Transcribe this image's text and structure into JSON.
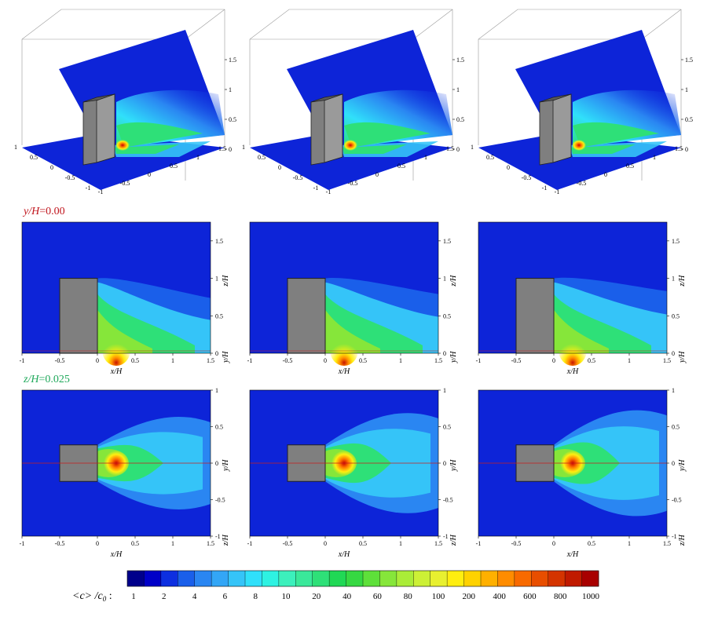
{
  "figure": {
    "row1": {
      "axis_labels": {
        "x": "x/H",
        "y": "y/H",
        "z": "z/H"
      },
      "x_ticks": [
        "-1",
        "-0.5",
        "0",
        "0.5",
        "1",
        "1.5"
      ],
      "y_ticks": [
        "-1",
        "-0.5",
        "0",
        "0.5",
        "1"
      ],
      "z_ticks": [
        "0",
        "0.5",
        "1",
        "1.5"
      ]
    },
    "row2": {
      "section_label_italic": "y/H",
      "section_label_value": "=0.00",
      "section_color": "#c0151d",
      "x_label": "x/H",
      "z_label": "z/H",
      "y_label": "y/H",
      "x_ticks": [
        "-1",
        "-0.5",
        "0",
        "0.5",
        "1",
        "1.5"
      ],
      "z_ticks": [
        "0",
        "0.5",
        "1",
        "1.5"
      ]
    },
    "row3": {
      "section_label_italic": "z/H",
      "section_label_value": "=0.025",
      "section_color": "#1ea85a",
      "x_label": "x/H",
      "y_label": "y/H",
      "z_label": "z/H",
      "x_ticks": [
        "-1",
        "-0.5",
        "0",
        "0.5",
        "1",
        "1.5"
      ],
      "y_ticks": [
        "-1",
        "-0.5",
        "0",
        "0.5",
        "1"
      ]
    },
    "colorbar": {
      "label_main": "<c> /c",
      "label_sub": "0",
      "label_colon": ":",
      "ticks": [
        "1",
        "2",
        "4",
        "6",
        "8",
        "10",
        "20",
        "40",
        "60",
        "80",
        "100",
        "200",
        "400",
        "600",
        "800",
        "1000"
      ],
      "colors": [
        "#00008b",
        "#0000c8",
        "#0d2fe0",
        "#1a5fea",
        "#2a86f2",
        "#33a6f6",
        "#35c4f8",
        "#30e0fa",
        "#2ef2e2",
        "#3cf0bc",
        "#3ae89a",
        "#2ee078",
        "#20d855",
        "#36d842",
        "#5ee03a",
        "#86e63a",
        "#aaec38",
        "#ccf036",
        "#e8f030",
        "#ffee10",
        "#ffd200",
        "#ffb000",
        "#ff8c00",
        "#f86a00",
        "#e84e00",
        "#d43400",
        "#c01a00",
        "#a80000"
      ]
    },
    "panels": [
      {
        "case": "left",
        "plume_spread": 0.6
      },
      {
        "case": "center",
        "plume_spread": 0.8
      },
      {
        "case": "right",
        "plume_spread": 0.95
      }
    ]
  }
}
